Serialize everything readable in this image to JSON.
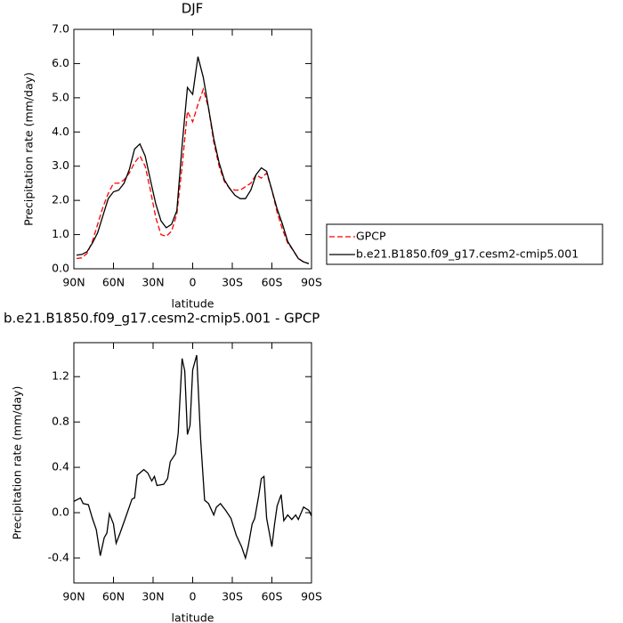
{
  "chart_data": [
    {
      "type": "line",
      "title": "DJF",
      "xlabel": "latitude",
      "ylabel": "Precipitation rate (mm/day)",
      "x": [
        88,
        84,
        80,
        76,
        72,
        68,
        64,
        60,
        56,
        52,
        48,
        44,
        40,
        36,
        32,
        28,
        24,
        20,
        16,
        12,
        8,
        4,
        0,
        -4,
        -8,
        -12,
        -16,
        -20,
        -24,
        -28,
        -32,
        -36,
        -40,
        -44,
        -48,
        -52,
        -56,
        -60,
        -64,
        -68,
        -72,
        -76,
        -80,
        -84,
        -88
      ],
      "series": [
        {
          "name": "GPCP",
          "color": "#ff0000",
          "linestyle": "dashed",
          "values": [
            0.3,
            0.32,
            0.45,
            0.8,
            1.3,
            1.8,
            2.2,
            2.5,
            2.5,
            2.6,
            2.8,
            3.1,
            3.3,
            3.0,
            2.3,
            1.5,
            1.0,
            0.95,
            1.1,
            1.6,
            3.0,
            4.6,
            4.3,
            4.8,
            5.25,
            4.7,
            3.7,
            3.0,
            2.55,
            2.35,
            2.3,
            2.3,
            2.4,
            2.5,
            2.75,
            2.65,
            2.8,
            2.3,
            1.65,
            1.15,
            0.75,
            0.55,
            0.3,
            0.2,
            0.15
          ]
        },
        {
          "name": "b.e21.B1850.f09_g17.cesm2-cmip5.001",
          "color": "#000000",
          "linestyle": "solid",
          "values": [
            0.4,
            0.42,
            0.5,
            0.75,
            1.05,
            1.55,
            2.05,
            2.25,
            2.3,
            2.5,
            2.9,
            3.5,
            3.65,
            3.3,
            2.6,
            1.9,
            1.4,
            1.2,
            1.3,
            1.7,
            3.6,
            5.3,
            5.1,
            6.2,
            5.6,
            4.7,
            3.8,
            3.1,
            2.6,
            2.35,
            2.15,
            2.05,
            2.05,
            2.3,
            2.75,
            2.95,
            2.85,
            2.3,
            1.75,
            1.3,
            0.8,
            0.55,
            0.3,
            0.2,
            0.15
          ]
        }
      ],
      "xlim": [
        90,
        -90
      ],
      "xticks": [
        {
          "value": 90,
          "label": "90N"
        },
        {
          "value": 60,
          "label": "60N"
        },
        {
          "value": 30,
          "label": "30N"
        },
        0,
        {
          "value": -30,
          "label": "30S"
        },
        {
          "value": -60,
          "label": "60S"
        },
        {
          "value": -90,
          "label": "90S"
        }
      ],
      "ylim": [
        0,
        7
      ],
      "yticks": [
        {
          "value": 0,
          "label": "0.0"
        },
        {
          "value": 1,
          "label": "1.0"
        },
        {
          "value": 2,
          "label": "2.0"
        },
        {
          "value": 3,
          "label": "3.0"
        },
        {
          "value": 4,
          "label": "4.0"
        },
        {
          "value": 5,
          "label": "5.0"
        },
        {
          "value": 6,
          "label": "6.0"
        },
        {
          "value": 7,
          "label": "7.0"
        }
      ],
      "grid": false,
      "legend": "right"
    },
    {
      "type": "line",
      "title": "b.e21.B1850.f09_g17.cesm2-cmip5.001 - GPCP",
      "xlabel": "latitude",
      "ylabel": "Precipitation rate (mm/day)",
      "x": [
        90,
        85,
        83,
        79,
        76,
        73,
        70,
        67,
        65,
        63,
        60,
        58,
        55,
        51,
        46,
        44,
        42,
        37,
        34,
        31,
        29,
        27,
        22,
        19,
        17,
        13,
        11,
        8,
        6,
        4,
        2,
        0,
        -3,
        -6,
        -9,
        -12,
        -16,
        -18,
        -21,
        -25,
        -29,
        -33,
        -37,
        -40,
        -42,
        -45,
        -47,
        -50,
        -52,
        -54,
        -56,
        -60,
        -62,
        -64,
        -67,
        -69,
        -72,
        -75,
        -78,
        -80,
        -84,
        -88,
        -90
      ],
      "values": [
        0.1,
        0.13,
        0.08,
        0.07,
        -0.05,
        -0.15,
        -0.38,
        -0.22,
        -0.18,
        -0.01,
        -0.1,
        -0.27,
        -0.18,
        -0.05,
        0.12,
        0.13,
        0.33,
        0.38,
        0.35,
        0.28,
        0.32,
        0.24,
        0.25,
        0.3,
        0.45,
        0.52,
        0.7,
        1.36,
        1.25,
        0.69,
        0.77,
        1.26,
        1.39,
        0.65,
        0.11,
        0.08,
        -0.02,
        0.05,
        0.08,
        0.02,
        -0.05,
        -0.2,
        -0.3,
        -0.4,
        -0.3,
        -0.1,
        -0.05,
        0.15,
        0.3,
        0.32,
        -0.05,
        -0.3,
        -0.1,
        0.06,
        0.16,
        -0.07,
        -0.02,
        -0.06,
        -0.02,
        -0.06,
        0.05,
        0.02,
        -0.03
      ],
      "color": "#000000",
      "xlim": [
        90,
        -90
      ],
      "xticks": [
        {
          "value": 90,
          "label": "90N"
        },
        {
          "value": 60,
          "label": "60N"
        },
        {
          "value": 30,
          "label": "30N"
        },
        0,
        {
          "value": -30,
          "label": "30S"
        },
        {
          "value": -60,
          "label": "60S"
        },
        {
          "value": -90,
          "label": "90S"
        }
      ],
      "ylim": [
        -0.62,
        1.5
      ],
      "yticks": [
        -0.4,
        {
          "value": 0,
          "label": "0.0"
        },
        0.4,
        0.8,
        1.2
      ],
      "grid": false
    }
  ]
}
